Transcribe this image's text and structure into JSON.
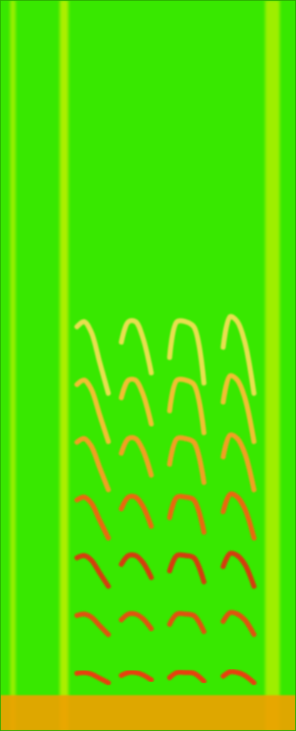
{
  "chart_data": {
    "type": "spectrogram",
    "tick_labels": false,
    "color": "#38e800",
    "xlim": [
      0,
      100
    ],
    "ylim": [
      0,
      100
    ],
    "noise_bands": [
      {
        "x0": 3.4,
        "x1": 5.3,
        "color": "#a8f000"
      },
      {
        "x0": 20.2,
        "x1": 23.1,
        "color": "#c0f000"
      },
      {
        "x0": 89.6,
        "x1": 94.5,
        "color": "#b0f000"
      }
    ],
    "floor_band": {
      "y0": 0,
      "y1": 4.9,
      "color": "#f0a000"
    },
    "series": [
      {
        "color": "#e8400a",
        "x": [
          26.0,
          28.4,
          30.8,
          33.7,
          36.6
        ],
        "values": [
          7.9,
          8.0,
          7.8,
          7.2,
          6.6
        ]
      },
      {
        "color": "#e0520c",
        "x": [
          26.0,
          28.4,
          30.8,
          33.7,
          36.6
        ],
        "values": [
          15.8,
          16.0,
          15.6,
          14.4,
          13.2
        ]
      },
      {
        "color": "#d43c08",
        "x": [
          26.0,
          28.4,
          30.8,
          33.7,
          36.6
        ],
        "values": [
          23.7,
          24.0,
          23.4,
          21.6,
          19.8
        ]
      },
      {
        "color": "#e86a10",
        "x": [
          26.0,
          28.4,
          30.8,
          33.7,
          36.6
        ],
        "values": [
          31.6,
          32.0,
          31.2,
          28.8,
          26.4
        ]
      },
      {
        "color": "#f0a020",
        "x": [
          26.0,
          28.4,
          30.8,
          33.7,
          36.6
        ],
        "values": [
          39.5,
          40.0,
          39.0,
          36.0,
          33.0
        ]
      },
      {
        "color": "#f0c030",
        "x": [
          26.0,
          28.4,
          30.8,
          33.7,
          36.6
        ],
        "values": [
          47.4,
          48.0,
          46.8,
          43.2,
          39.6
        ]
      },
      {
        "color": "#e8e050",
        "x": [
          26.0,
          28.4,
          30.8,
          33.7,
          36.6
        ],
        "values": [
          55.3,
          56.0,
          54.6,
          50.4,
          46.2
        ]
      },
      {
        "color": "#e8400a",
        "x": [
          41.0,
          43.4,
          45.8,
          48.2,
          51.1
        ],
        "values": [
          7.6,
          8.0,
          8.0,
          7.7,
          7.0
        ]
      },
      {
        "color": "#e0520c",
        "x": [
          41.0,
          43.4,
          45.8,
          48.2,
          51.1
        ],
        "values": [
          15.2,
          16.0,
          16.0,
          15.4,
          14.0
        ]
      },
      {
        "color": "#d43c08",
        "x": [
          41.0,
          43.4,
          45.8,
          48.2,
          51.1
        ],
        "values": [
          22.8,
          24.0,
          24.0,
          23.1,
          21.0
        ]
      },
      {
        "color": "#e86a10",
        "x": [
          41.0,
          43.4,
          45.8,
          48.2,
          51.1
        ],
        "values": [
          30.4,
          32.0,
          32.0,
          30.8,
          28.0
        ]
      },
      {
        "color": "#f0a020",
        "x": [
          41.0,
          43.4,
          45.8,
          48.2,
          51.1
        ],
        "values": [
          38.0,
          40.0,
          40.0,
          38.5,
          35.0
        ]
      },
      {
        "color": "#f0c030",
        "x": [
          41.0,
          43.4,
          45.8,
          48.2,
          51.1
        ],
        "values": [
          45.6,
          48.0,
          48.0,
          46.2,
          42.0
        ]
      },
      {
        "color": "#e8e050",
        "x": [
          41.0,
          43.4,
          45.8,
          48.2,
          51.1
        ],
        "values": [
          53.2,
          56.0,
          56.0,
          53.9,
          49.0
        ]
      },
      {
        "color": "#e8400a",
        "x": [
          57.3,
          59.8,
          62.7,
          65.5,
          68.9
        ],
        "values": [
          7.3,
          8.0,
          8.0,
          7.9,
          6.8
        ]
      },
      {
        "color": "#e0520c",
        "x": [
          57.3,
          59.8,
          62.7,
          65.5,
          68.9
        ],
        "values": [
          14.6,
          16.0,
          16.0,
          15.8,
          13.6
        ]
      },
      {
        "color": "#d43c08",
        "x": [
          57.3,
          59.8,
          62.7,
          65.5,
          68.9
        ],
        "values": [
          21.9,
          24.0,
          24.0,
          23.7,
          20.4
        ]
      },
      {
        "color": "#e86a10",
        "x": [
          57.3,
          59.8,
          62.7,
          65.5,
          68.9
        ],
        "values": [
          29.2,
          32.0,
          32.0,
          31.6,
          27.2
        ]
      },
      {
        "color": "#f0a020",
        "x": [
          57.3,
          59.8,
          62.7,
          65.5,
          68.9
        ],
        "values": [
          36.5,
          40.0,
          40.0,
          39.5,
          34.0
        ]
      },
      {
        "color": "#f0c030",
        "x": [
          57.3,
          59.8,
          62.7,
          65.5,
          68.9
        ],
        "values": [
          43.8,
          48.0,
          48.0,
          47.4,
          40.8
        ]
      },
      {
        "color": "#e8e050",
        "x": [
          57.3,
          59.8,
          62.7,
          65.5,
          68.9
        ],
        "values": [
          51.1,
          56.0,
          56.0,
          55.3,
          47.6
        ]
      },
      {
        "color": "#e8400a",
        "x": [
          75.4,
          77.8,
          80.2,
          82.7,
          85.8
        ],
        "values": [
          7.5,
          8.1,
          8.0,
          7.6,
          6.6
        ]
      },
      {
        "color": "#e0520c",
        "x": [
          75.4,
          77.8,
          80.2,
          82.7,
          85.8
        ],
        "values": [
          15.0,
          16.2,
          16.0,
          15.2,
          13.2
        ]
      },
      {
        "color": "#d43c08",
        "x": [
          75.4,
          77.8,
          80.2,
          82.7,
          85.8
        ],
        "values": [
          22.5,
          24.3,
          24.0,
          22.8,
          19.8
        ]
      },
      {
        "color": "#e86a10",
        "x": [
          75.4,
          77.8,
          80.2,
          82.7,
          85.8
        ],
        "values": [
          30.0,
          32.4,
          32.0,
          30.4,
          26.4
        ]
      },
      {
        "color": "#f0a020",
        "x": [
          75.4,
          77.8,
          80.2,
          82.7,
          85.8
        ],
        "values": [
          37.5,
          40.5,
          40.0,
          38.0,
          33.0
        ]
      },
      {
        "color": "#f0c030",
        "x": [
          75.4,
          77.8,
          80.2,
          82.7,
          85.8
        ],
        "values": [
          45.0,
          48.6,
          48.0,
          45.6,
          39.6
        ]
      },
      {
        "color": "#e8e050",
        "x": [
          75.4,
          77.8,
          80.2,
          82.7,
          85.8
        ],
        "values": [
          52.5,
          56.7,
          56.0,
          53.2,
          46.2
        ]
      }
    ]
  }
}
